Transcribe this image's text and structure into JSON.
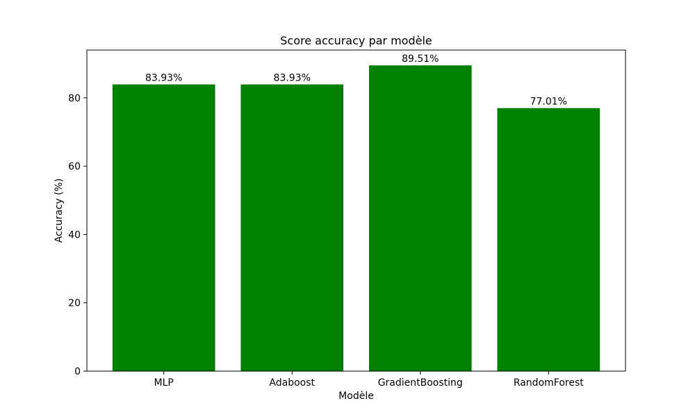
{
  "chart_data": {
    "type": "bar",
    "title": "Score accuracy par modèle",
    "xlabel": "Modèle",
    "ylabel": "Accuracy (%)",
    "categories": [
      "MLP",
      "Adaboost",
      "GradientBoosting",
      "RandomForest"
    ],
    "values": [
      83.93,
      83.93,
      89.51,
      77.01
    ],
    "data_labels": [
      "83.93%",
      "83.93%",
      "89.51%",
      "77.01%"
    ],
    "yticks": [
      0,
      20,
      40,
      60,
      80
    ],
    "ylim": [
      0,
      94
    ],
    "grid": false,
    "legend": "none",
    "bar_color": "#008000"
  }
}
